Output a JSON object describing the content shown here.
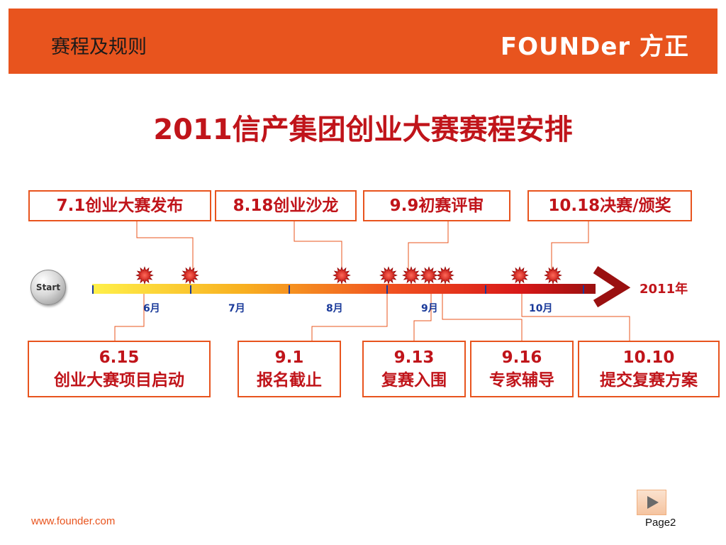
{
  "header": {
    "section_title": "赛程及规则",
    "logo_text": "FOUNDer 方正"
  },
  "main_title": "2011信产集团创业大赛赛程安排",
  "top_events": [
    {
      "label": "7.1创业大赛发布"
    },
    {
      "label": "8.18创业沙龙"
    },
    {
      "label": "9.9初赛评审"
    },
    {
      "label": "10.18决赛/颁奖"
    }
  ],
  "bottom_events": [
    {
      "date": "6.15",
      "desc": "创业大赛项目启动"
    },
    {
      "date": "9.1",
      "desc": "报名截止"
    },
    {
      "date": "9.13",
      "desc": "复赛入围"
    },
    {
      "date": "9.16",
      "desc": "专家辅导"
    },
    {
      "date": "10.10",
      "desc": "提交复赛方案"
    }
  ],
  "timeline": {
    "start_label": "Start",
    "year_label": "2011年",
    "months": [
      "6月",
      "7月",
      "8月",
      "9月",
      "10月"
    ]
  },
  "footer": {
    "url": "www.founder.com",
    "page": "Page2"
  },
  "colors": {
    "header": "#e8541e",
    "accent_red": "#c0141a",
    "month_blue": "#1a3a9a"
  },
  "icons": {
    "event_marker": "starburst-icon",
    "next": "play-arrow-icon"
  }
}
